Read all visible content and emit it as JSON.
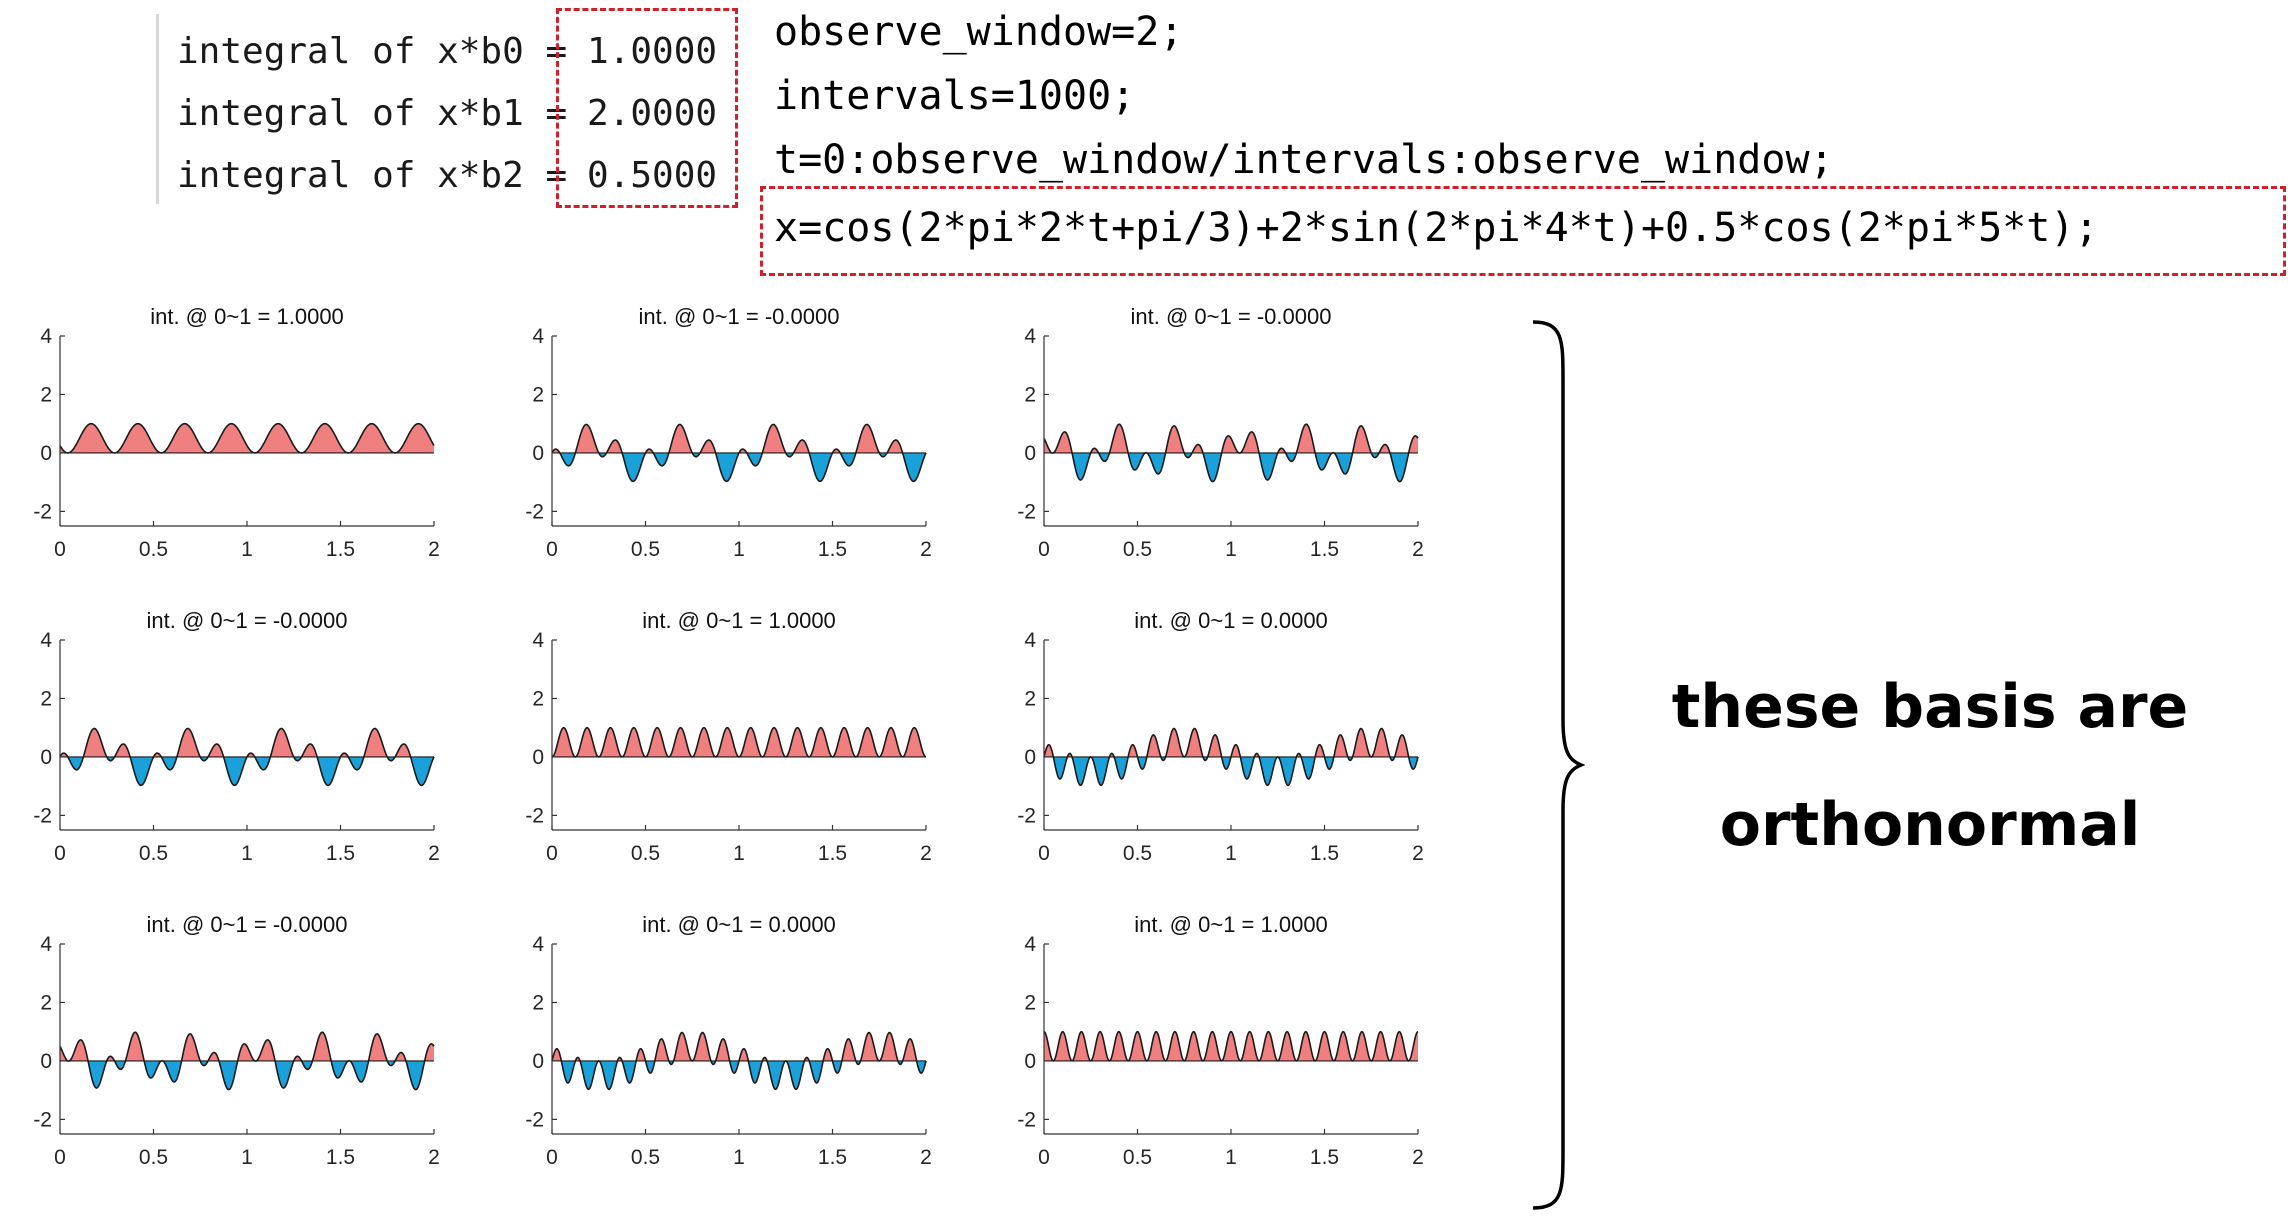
{
  "console": {
    "rows": [
      {
        "label": "integral of x*b0 =",
        "value": "1.0000"
      },
      {
        "label": "integral of x*b1 =",
        "value": "2.0000"
      },
      {
        "label": "integral of x*b2 =",
        "value": "0.5000"
      }
    ]
  },
  "code": {
    "lines": [
      "observe_window=2;",
      "intervals=1000;",
      "t=0:observe_window/intervals:observe_window;",
      "x=cos(2*pi*2*t+pi/3)+2*sin(2*pi*4*t)+0.5*cos(2*pi*5*t);"
    ]
  },
  "callout": {
    "line1": "these basis are",
    "line2": "orthonormal"
  },
  "colors": {
    "positive_fill": "#f08080",
    "negative_fill": "#1ba1d9",
    "highlight_box": "#d0202a"
  },
  "chart_data": [
    {
      "type": "area",
      "title": "int. @ 0~1 = 1.0000",
      "basis_i": 0,
      "basis_j": 0,
      "xlim": [
        0,
        2
      ],
      "ylim": [
        -2.5,
        4
      ],
      "xticks": [
        0,
        0.5,
        1,
        1.5,
        2
      ],
      "xtick_labels": [
        "0",
        "0.5",
        "1",
        "1.5",
        "2"
      ],
      "yticks": [
        -2,
        0,
        2,
        4
      ],
      "ytick_labels": [
        "-2",
        "0",
        "2",
        "4"
      ]
    },
    {
      "type": "area",
      "title": "int. @ 0~1 = -0.0000",
      "basis_i": 0,
      "basis_j": 1,
      "xlim": [
        0,
        2
      ],
      "ylim": [
        -2.5,
        4
      ],
      "xticks": [
        0,
        0.5,
        1,
        1.5,
        2
      ],
      "xtick_labels": [
        "0",
        "0.5",
        "1",
        "1.5",
        "2"
      ],
      "yticks": [
        -2,
        0,
        2,
        4
      ],
      "ytick_labels": [
        "-2",
        "0",
        "2",
        "4"
      ]
    },
    {
      "type": "area",
      "title": "int. @ 0~1 = -0.0000",
      "basis_i": 0,
      "basis_j": 2,
      "xlim": [
        0,
        2
      ],
      "ylim": [
        -2.5,
        4
      ],
      "xticks": [
        0,
        0.5,
        1,
        1.5,
        2
      ],
      "xtick_labels": [
        "0",
        "0.5",
        "1",
        "1.5",
        "2"
      ],
      "yticks": [
        -2,
        0,
        2,
        4
      ],
      "ytick_labels": [
        "-2",
        "0",
        "2",
        "4"
      ]
    },
    {
      "type": "area",
      "title": "int. @ 0~1 = -0.0000",
      "basis_i": 1,
      "basis_j": 0,
      "xlim": [
        0,
        2
      ],
      "ylim": [
        -2.5,
        4
      ],
      "xticks": [
        0,
        0.5,
        1,
        1.5,
        2
      ],
      "xtick_labels": [
        "0",
        "0.5",
        "1",
        "1.5",
        "2"
      ],
      "yticks": [
        -2,
        0,
        2,
        4
      ],
      "ytick_labels": [
        "-2",
        "0",
        "2",
        "4"
      ]
    },
    {
      "type": "area",
      "title": "int. @ 0~1 = 1.0000",
      "basis_i": 1,
      "basis_j": 1,
      "xlim": [
        0,
        2
      ],
      "ylim": [
        -2.5,
        4
      ],
      "xticks": [
        0,
        0.5,
        1,
        1.5,
        2
      ],
      "xtick_labels": [
        "0",
        "0.5",
        "1",
        "1.5",
        "2"
      ],
      "yticks": [
        -2,
        0,
        2,
        4
      ],
      "ytick_labels": [
        "-2",
        "0",
        "2",
        "4"
      ]
    },
    {
      "type": "area",
      "title": "int. @ 0~1 = 0.0000",
      "basis_i": 1,
      "basis_j": 2,
      "xlim": [
        0,
        2
      ],
      "ylim": [
        -2.5,
        4
      ],
      "xticks": [
        0,
        0.5,
        1,
        1.5,
        2
      ],
      "xtick_labels": [
        "0",
        "0.5",
        "1",
        "1.5",
        "2"
      ],
      "yticks": [
        -2,
        0,
        2,
        4
      ],
      "ytick_labels": [
        "-2",
        "0",
        "2",
        "4"
      ]
    },
    {
      "type": "area",
      "title": "int. @ 0~1 = -0.0000",
      "basis_i": 2,
      "basis_j": 0,
      "xlim": [
        0,
        2
      ],
      "ylim": [
        -2.5,
        4
      ],
      "xticks": [
        0,
        0.5,
        1,
        1.5,
        2
      ],
      "xtick_labels": [
        "0",
        "0.5",
        "1",
        "1.5",
        "2"
      ],
      "yticks": [
        -2,
        0,
        2,
        4
      ],
      "ytick_labels": [
        "-2",
        "0",
        "2",
        "4"
      ]
    },
    {
      "type": "area",
      "title": "int. @ 0~1 = 0.0000",
      "basis_i": 2,
      "basis_j": 1,
      "xlim": [
        0,
        2
      ],
      "ylim": [
        -2.5,
        4
      ],
      "xticks": [
        0,
        0.5,
        1,
        1.5,
        2
      ],
      "xtick_labels": [
        "0",
        "0.5",
        "1",
        "1.5",
        "2"
      ],
      "yticks": [
        -2,
        0,
        2,
        4
      ],
      "ytick_labels": [
        "-2",
        "0",
        "2",
        "4"
      ]
    },
    {
      "type": "area",
      "title": "int. @ 0~1 = 1.0000",
      "basis_i": 2,
      "basis_j": 2,
      "xlim": [
        0,
        2
      ],
      "ylim": [
        -2.5,
        4
      ],
      "xticks": [
        0,
        0.5,
        1,
        1.5,
        2
      ],
      "xtick_labels": [
        "0",
        "0.5",
        "1",
        "1.5",
        "2"
      ],
      "yticks": [
        -2,
        0,
        2,
        4
      ],
      "ytick_labels": [
        "-2",
        "0",
        "2",
        "4"
      ]
    }
  ]
}
